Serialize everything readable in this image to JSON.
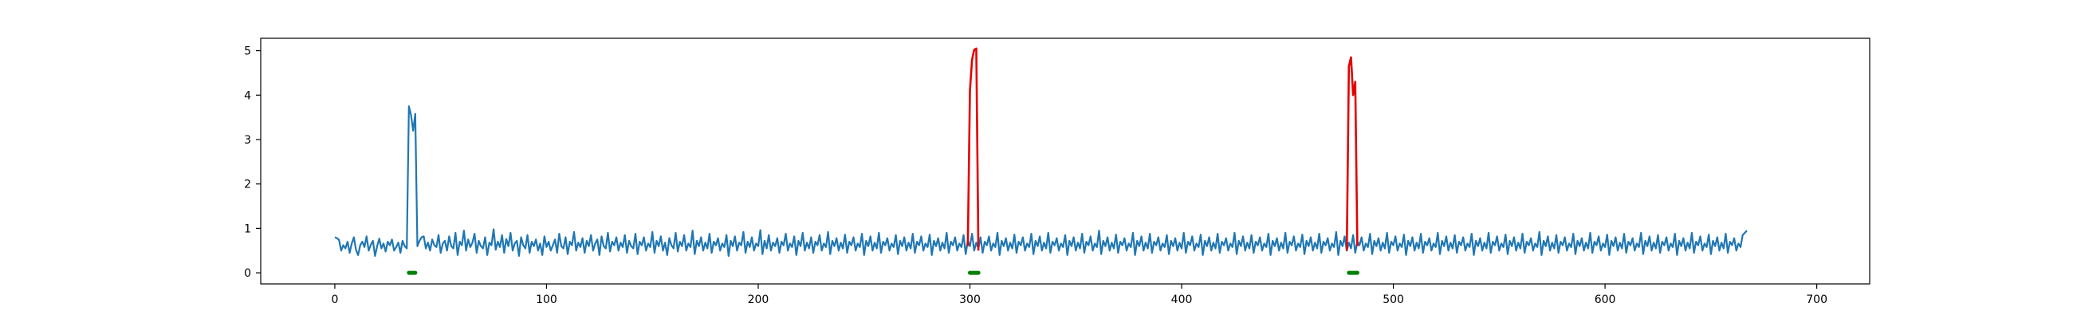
{
  "chart_data": {
    "type": "line",
    "title": "",
    "xlabel": "",
    "ylabel": "",
    "xlim": [
      -35,
      725
    ],
    "ylim": [
      -0.25,
      5.28
    ],
    "x_ticks": [
      0,
      100,
      200,
      300,
      400,
      500,
      600,
      700
    ],
    "y_ticks": [
      0,
      1,
      2,
      3,
      4,
      5
    ],
    "grid": false,
    "legend": "none",
    "colors": {
      "signal": "#1f77b4",
      "anomaly": "#e50000",
      "marker": "#008000",
      "axes": "#000000"
    },
    "series": [
      {
        "role": "signal",
        "x_start": 0,
        "x_end": 690,
        "step": 1,
        "y": [
          0.8,
          0.78,
          0.74,
          0.5,
          0.62,
          0.55,
          0.7,
          0.45,
          0.66,
          0.8,
          0.52,
          0.4,
          0.62,
          0.7,
          0.58,
          0.82,
          0.5,
          0.63,
          0.72,
          0.38,
          0.6,
          0.77,
          0.55,
          0.66,
          0.48,
          0.7,
          0.62,
          0.75,
          0.5,
          0.58,
          0.68,
          0.45,
          0.72,
          0.6,
          0.55,
          3.75,
          3.55,
          3.2,
          3.58,
          0.6,
          0.72,
          0.8,
          0.82,
          0.55,
          0.68,
          0.5,
          0.75,
          0.62,
          0.58,
          0.85,
          0.45,
          0.66,
          0.72,
          0.5,
          0.82,
          0.6,
          0.55,
          0.9,
          0.4,
          0.7,
          0.62,
          0.95,
          0.5,
          0.75,
          0.58,
          0.68,
          0.88,
          0.45,
          0.72,
          0.6,
          0.55,
          0.8,
          0.4,
          0.68,
          0.62,
          0.98,
          0.52,
          0.7,
          0.58,
          0.85,
          0.45,
          0.76,
          0.6,
          0.9,
          0.5,
          0.66,
          0.72,
          0.38,
          0.8,
          0.62,
          0.55,
          0.85,
          0.45,
          0.7,
          0.6,
          0.75,
          0.5,
          0.66,
          0.4,
          0.82,
          0.58,
          0.7,
          0.5,
          0.62,
          0.75,
          0.45,
          0.88,
          0.6,
          0.55,
          0.8,
          0.42,
          0.7,
          0.62,
          0.92,
          0.5,
          0.68,
          0.58,
          0.78,
          0.45,
          0.72,
          0.6,
          0.85,
          0.5,
          0.66,
          0.75,
          0.4,
          0.82,
          0.6,
          0.55,
          0.9,
          0.48,
          0.7,
          0.62,
          0.8,
          0.5,
          0.68,
          0.58,
          0.85,
          0.45,
          0.72,
          0.6,
          0.55,
          0.88,
          0.42,
          0.7,
          0.62,
          0.8,
          0.5,
          0.66,
          0.58,
          0.92,
          0.45,
          0.72,
          0.6,
          0.82,
          0.5,
          0.68,
          0.4,
          0.78,
          0.62,
          0.55,
          0.9,
          0.48,
          0.7,
          0.6,
          0.85,
          0.5,
          0.66,
          0.58,
          0.95,
          0.42,
          0.72,
          0.6,
          0.8,
          0.5,
          0.68,
          0.55,
          0.88,
          0.45,
          0.7,
          0.62,
          0.78,
          0.5,
          0.66,
          0.58,
          0.85,
          0.38,
          0.72,
          0.6,
          0.82,
          0.5,
          0.68,
          0.62,
          0.92,
          0.45,
          0.7,
          0.58,
          0.8,
          0.5,
          0.66,
          0.6,
          0.96,
          0.42,
          0.72,
          0.55,
          0.85,
          0.5,
          0.68,
          0.6,
          0.78,
          0.45,
          0.7,
          0.62,
          0.88,
          0.5,
          0.66,
          0.58,
          0.82,
          0.4,
          0.72,
          0.6,
          0.9,
          0.5,
          0.68,
          0.55,
          0.8,
          0.45,
          0.7,
          0.62,
          0.85,
          0.5,
          0.66,
          0.58,
          0.92,
          0.42,
          0.72,
          0.6,
          0.78,
          0.5,
          0.68,
          0.55,
          0.86,
          0.45,
          0.7,
          0.62,
          0.8,
          0.5,
          0.66,
          0.58,
          0.88,
          0.4,
          0.72,
          0.6,
          0.82,
          0.5,
          0.68,
          0.55,
          0.9,
          0.45,
          0.7,
          0.62,
          0.78,
          0.5,
          0.66,
          0.58,
          0.85,
          0.42,
          0.72,
          0.6,
          0.8,
          0.5,
          0.68,
          0.55,
          0.88,
          0.45,
          0.7,
          0.62,
          0.82,
          0.5,
          0.66,
          0.58,
          0.86,
          0.4,
          0.72,
          0.6,
          0.78,
          0.5,
          0.68,
          0.55,
          0.9,
          0.45,
          0.7,
          0.62,
          0.8,
          0.5,
          0.66,
          0.58,
          0.85,
          0.42,
          0.72,
          0.6,
          0.88,
          0.5,
          0.68,
          0.55,
          0.8,
          0.45,
          0.7,
          0.62,
          0.82,
          0.5,
          0.66,
          0.58,
          0.9,
          0.4,
          0.72,
          0.6,
          0.78,
          0.5,
          0.68,
          0.55,
          0.86,
          0.45,
          0.7,
          0.62,
          0.8,
          0.5,
          0.66,
          0.58,
          0.88,
          0.42,
          0.72,
          0.6,
          0.82,
          0.5,
          0.68,
          0.55,
          0.9,
          0.45,
          0.7,
          0.62,
          0.78,
          0.5,
          0.66,
          0.58,
          0.85,
          0.4,
          0.72,
          0.6,
          0.8,
          0.5,
          0.68,
          0.55,
          0.88,
          0.45,
          0.7,
          0.62,
          0.82,
          0.5,
          0.66,
          0.58,
          0.95,
          0.42,
          0.72,
          0.6,
          0.8,
          0.5,
          0.68,
          0.55,
          0.86,
          0.45,
          0.7,
          0.62,
          0.78,
          0.5,
          0.66,
          0.58,
          0.9,
          0.4,
          0.72,
          0.6,
          0.82,
          0.5,
          0.68,
          0.55,
          0.88,
          0.45,
          0.7,
          0.62,
          0.8,
          0.5,
          0.66,
          0.58,
          0.85,
          0.42,
          0.72,
          0.6,
          0.78,
          0.5,
          0.68,
          0.55,
          0.9,
          0.45,
          0.7,
          0.62,
          0.82,
          0.5,
          0.66,
          0.58,
          0.86,
          0.4,
          0.72,
          0.6,
          0.8,
          0.5,
          0.68,
          0.55,
          0.88,
          0.45,
          0.7,
          0.62,
          0.78,
          0.5,
          0.66,
          0.58,
          0.9,
          0.42,
          0.72,
          0.6,
          0.82,
          0.5,
          0.68,
          0.55,
          0.85,
          0.45,
          0.7,
          0.62,
          0.8,
          0.5,
          0.66,
          0.58,
          0.88,
          0.4,
          0.72,
          0.6,
          0.78,
          0.5,
          0.68,
          0.55,
          0.9,
          0.45,
          0.7,
          0.62,
          0.82,
          0.5,
          0.66,
          0.58,
          0.86,
          0.42,
          0.72,
          0.6,
          0.8,
          0.5,
          0.68,
          0.55,
          0.88,
          0.45,
          0.7,
          0.62,
          0.78,
          0.5,
          0.66,
          0.58,
          0.92,
          0.4,
          0.72,
          0.6,
          0.82,
          0.5,
          0.68,
          0.55,
          0.85,
          0.45,
          0.7,
          0.62,
          0.8,
          0.5,
          0.66,
          0.58,
          0.88,
          0.42,
          0.72,
          0.6,
          0.78,
          0.5,
          0.68,
          0.55,
          0.9,
          0.45,
          0.7,
          0.62,
          0.82,
          0.5,
          0.66,
          0.58,
          0.86,
          0.4,
          0.72,
          0.6,
          0.8,
          0.5,
          0.68,
          0.55,
          0.88,
          0.45,
          0.7,
          0.62,
          0.78,
          0.5,
          0.66,
          0.58,
          0.9,
          0.42,
          0.72,
          0.6,
          0.82,
          0.5,
          0.68,
          0.55,
          0.85,
          0.45,
          0.7,
          0.62,
          0.8,
          0.5,
          0.66,
          0.58,
          0.88,
          0.4,
          0.72,
          0.6,
          0.78,
          0.5,
          0.68,
          0.55,
          0.9,
          0.45,
          0.7,
          0.62,
          0.82,
          0.5,
          0.66,
          0.58,
          0.86,
          0.42,
          0.72,
          0.6,
          0.8,
          0.5,
          0.68,
          0.55,
          0.88,
          0.45,
          0.7,
          0.62,
          0.78,
          0.5,
          0.66,
          0.58,
          0.92,
          0.4,
          0.72,
          0.6,
          0.82,
          0.5,
          0.68,
          0.55,
          0.85,
          0.45,
          0.7,
          0.62,
          0.8,
          0.5,
          0.66,
          0.58,
          0.88,
          0.42,
          0.72,
          0.6,
          0.78,
          0.5,
          0.68,
          0.55,
          0.9,
          0.45,
          0.7,
          0.62,
          0.82,
          0.5,
          0.66,
          0.58,
          0.86,
          0.4,
          0.72,
          0.6,
          0.8,
          0.5,
          0.68,
          0.55,
          0.88,
          0.45,
          0.7,
          0.62,
          0.78,
          0.5,
          0.66,
          0.58,
          0.9,
          0.42,
          0.72,
          0.6,
          0.82,
          0.5,
          0.68,
          0.55,
          0.85,
          0.45,
          0.7,
          0.62,
          0.8,
          0.5,
          0.66,
          0.58,
          0.88,
          0.4,
          0.72,
          0.6,
          0.78,
          0.5,
          0.68,
          0.55,
          0.9,
          0.45,
          0.7,
          0.62,
          0.82,
          0.5,
          0.66,
          0.58,
          0.86,
          0.42,
          0.72,
          0.6,
          0.8,
          0.5,
          0.68,
          0.55,
          0.88,
          0.45,
          0.7,
          0.62,
          0.78,
          0.5,
          0.66,
          0.58,
          0.85,
          0.9,
          0.95
        ]
      },
      {
        "role": "anomaly",
        "x": [
          299,
          300,
          301,
          302,
          303,
          304
        ],
        "y": [
          0.6,
          4.1,
          4.8,
          5.02,
          5.05,
          0.5
        ]
      },
      {
        "role": "anomaly",
        "x": [
          478,
          479,
          480,
          481,
          482,
          483
        ],
        "y": [
          0.5,
          4.65,
          4.85,
          4.0,
          4.3,
          0.6
        ]
      }
    ],
    "markers": [
      {
        "x_start": 35,
        "x_end": 38,
        "y": 0
      },
      {
        "x_start": 300,
        "x_end": 304,
        "y": 0
      },
      {
        "x_start": 479,
        "x_end": 483,
        "y": 0
      }
    ]
  }
}
